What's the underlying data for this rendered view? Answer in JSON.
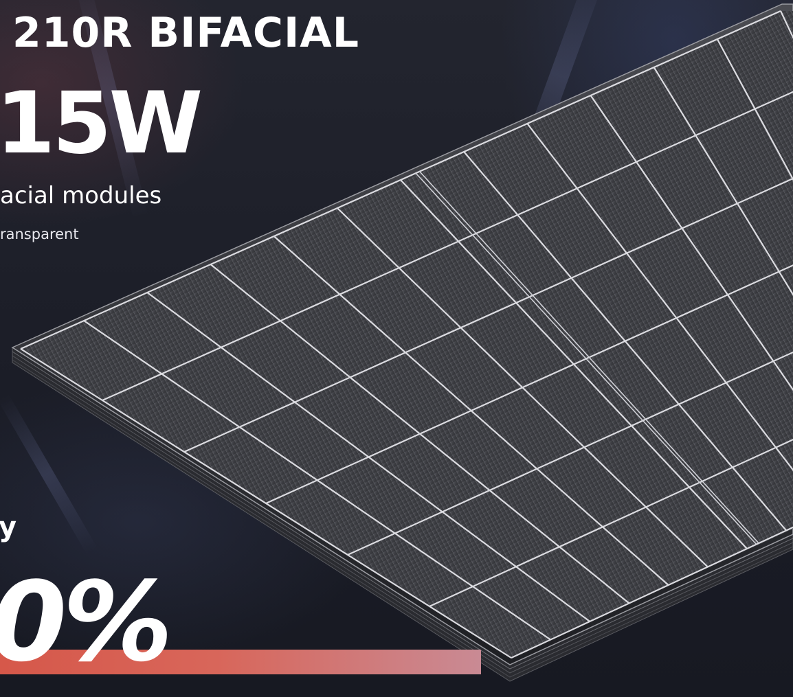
{
  "headline": "210R BIFACIAL",
  "power": "15W",
  "subtitle": "acial modules",
  "subnote": "ransparent",
  "efficiency_label": "y",
  "efficiency_value": "0%",
  "colors": {
    "background": "#1d1f2b",
    "text": "#ffffff",
    "accent_bar": "#d6584a",
    "panel_cell": "#3a3b40",
    "panel_grid": "#e9e9ee"
  },
  "image_description": {
    "subject": "bifacial solar panel module",
    "panel_grid": {
      "columns": 6,
      "rows": 12
    }
  }
}
